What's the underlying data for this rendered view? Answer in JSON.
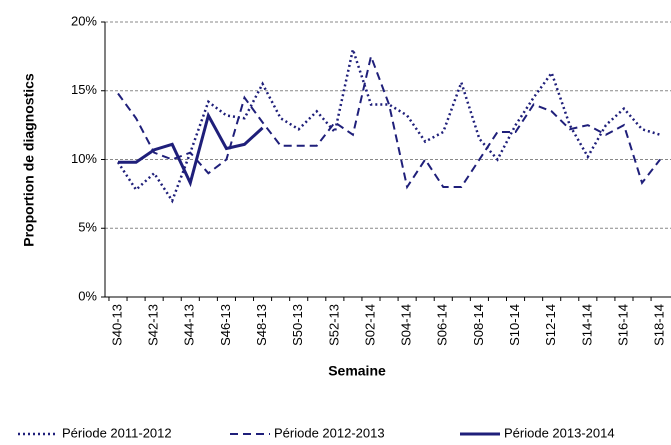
{
  "chart_data": {
    "type": "line",
    "y_label": "Proportion de diagnostics",
    "x_label": "Semaine",
    "categories": [
      "S40-13",
      null,
      "S42-13",
      null,
      "S44-13",
      null,
      "S46-13",
      null,
      "S48-13",
      null,
      "S50-13",
      null,
      "S52-13",
      null,
      "S02-14",
      null,
      "S04-14",
      null,
      "S06-14",
      null,
      "S08-14",
      null,
      "S10-14",
      null,
      "S12-14",
      null,
      "S14-14",
      null,
      "S16-14",
      null,
      "S18-14"
    ],
    "ylim": [
      0,
      20
    ],
    "yticks": [
      {
        "value": 0,
        "label": "0%"
      },
      {
        "value": 5,
        "label": "5%"
      },
      {
        "value": 10,
        "label": "10%"
      },
      {
        "value": 15,
        "label": "15%"
      },
      {
        "value": 20,
        "label": "20%"
      }
    ],
    "grid": true,
    "legend": "bottom",
    "series": [
      {
        "name": "Période 2011-2012",
        "color": "#1f1f7a",
        "line_style": "dotted",
        "values": [
          9.8,
          7.8,
          9,
          7,
          10.5,
          14.2,
          13.2,
          13,
          15.5,
          13,
          12.2,
          13.5,
          12,
          18,
          14,
          14,
          13.2,
          11.3,
          12,
          15.6,
          11.5,
          10,
          12.5,
          14.5,
          16.3,
          12.5,
          10.2,
          12.5,
          13.7,
          12.2,
          11.8
        ]
      },
      {
        "name": "Période 2012-2013",
        "color": "#1f1f7a",
        "line_style": "dashed",
        "values": [
          14.8,
          13,
          10.5,
          10,
          10.5,
          9,
          10,
          14.5,
          12.7,
          11,
          11,
          11,
          12.7,
          11.8,
          17.5,
          14,
          8,
          10,
          8,
          8,
          10,
          12,
          12,
          14,
          13.5,
          12.2,
          12.5,
          11.8,
          12.5,
          8.3,
          10
        ]
      },
      {
        "name": "Période 2013-2014",
        "color": "#1f1f7a",
        "line_style": "solid",
        "values": [
          9.8,
          9.8,
          10.7,
          11.1,
          8.3,
          13.2,
          10.8,
          11.1,
          12.3,
          null,
          null,
          null,
          null,
          null,
          null,
          null,
          null,
          null,
          null,
          null,
          null,
          null,
          null,
          null,
          null,
          null,
          null,
          null,
          null,
          null,
          null
        ]
      }
    ]
  }
}
